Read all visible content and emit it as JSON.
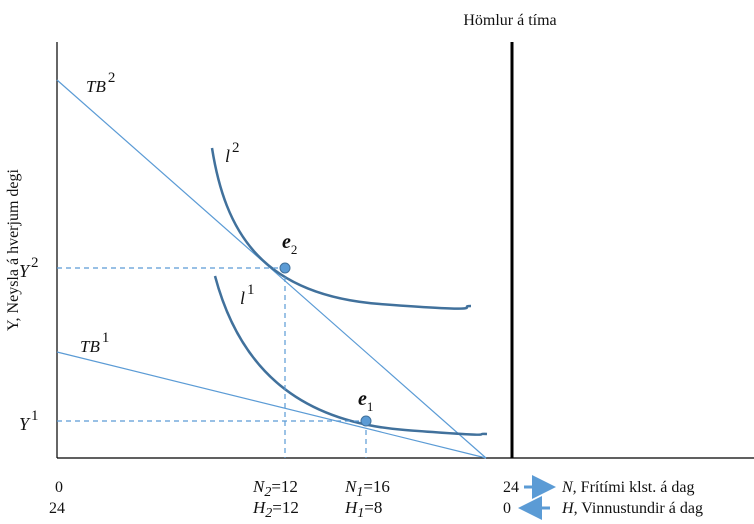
{
  "figure": {
    "y_axis_label": "Y, Neysla á hverjum degi",
    "constraint_label": "Hömlur á tíma",
    "budget_lines": [
      {
        "name": "TB",
        "sup": "2"
      },
      {
        "name": "TB",
        "sup": "1"
      }
    ],
    "indifference_curves": [
      {
        "name": "l",
        "sup": "2"
      },
      {
        "name": "l",
        "sup": "1"
      }
    ],
    "equilibria": [
      {
        "name": "e",
        "sub": "2"
      },
      {
        "name": "e",
        "sub": "1"
      }
    ],
    "y_marks": [
      {
        "name": "Y",
        "sup": "2"
      },
      {
        "name": "Y",
        "sup": "1"
      }
    ],
    "x_axis": {
      "leisure": {
        "origin": "0",
        "end": "24",
        "label_var": "N",
        "label_text": ", Frítími klst. á dag",
        "mark2": {
          "var": "N",
          "sub": "2",
          "value": "=12"
        },
        "mark1": {
          "var": "N",
          "sub": "1",
          "value": "=16"
        }
      },
      "work": {
        "origin": "24",
        "end": "0",
        "label_var": "H",
        "label_text": ", Vinnustundir á dag",
        "mark2": {
          "var": "H",
          "sub": "2",
          "value": "=12"
        },
        "mark1": {
          "var": "H",
          "sub": "1",
          "value": "=8"
        }
      }
    },
    "colors": {
      "budget": "#5b9bd5",
      "curve": "#41719c",
      "point": "#5b9bd5",
      "guide": "#5b9bd5",
      "axis": "#000000",
      "arrow": "#5b9bd5"
    }
  }
}
